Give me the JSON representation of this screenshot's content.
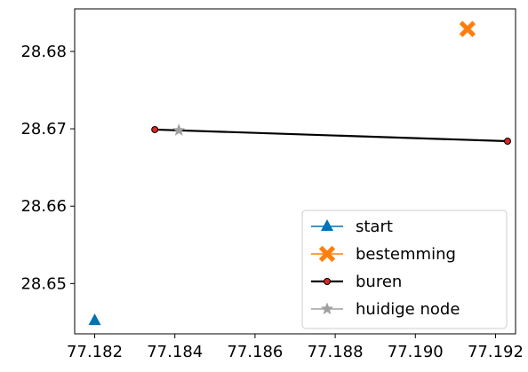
{
  "chart_data": {
    "type": "line",
    "title": "",
    "xlabel": "",
    "ylabel": "",
    "xlim": [
      77.1815,
      77.1925
    ],
    "ylim": [
      28.6435,
      28.6855
    ],
    "xticks": [
      "77.182",
      "77.184",
      "77.186",
      "77.188",
      "77.190",
      "77.192"
    ],
    "yticks": [
      "28.65",
      "28.66",
      "28.67",
      "28.68"
    ],
    "grid": false,
    "legend_position": "lower-right",
    "series": [
      {
        "name": "start",
        "marker": "triangle",
        "color": "#0072b2",
        "points": [
          [
            77.182,
            28.6452
          ]
        ]
      },
      {
        "name": "bestemming",
        "marker": "x-filled",
        "color": "#ff7f0e",
        "points": [
          [
            77.1913,
            28.6829
          ]
        ]
      },
      {
        "name": "buren",
        "marker": "circle",
        "color": "#000000",
        "marker_fill": "#d62728",
        "line": true,
        "points": [
          [
            77.1835,
            28.6699
          ],
          [
            77.1923,
            28.6684
          ]
        ]
      },
      {
        "name": "huidige node",
        "marker": "star",
        "color": "#a0a0a0",
        "points": [
          [
            77.1841,
            28.6698
          ]
        ]
      }
    ]
  }
}
